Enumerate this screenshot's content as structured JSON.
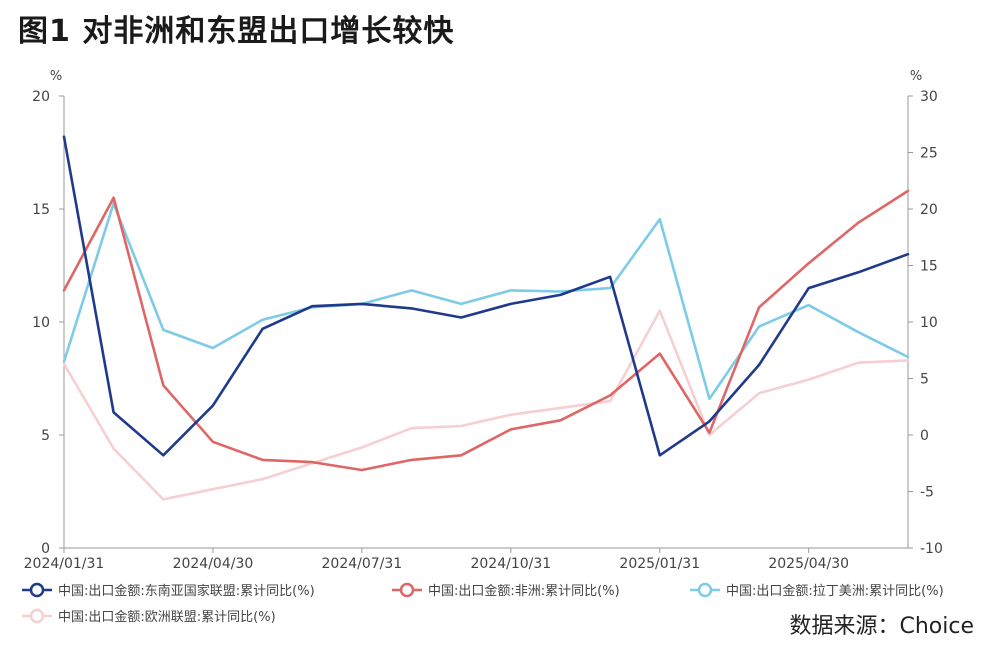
{
  "page": {
    "title": "图1    对非洲和东盟出口增长较快",
    "source": "数据来源：Choice"
  },
  "chart_data": {
    "type": "line",
    "left_unit": "%",
    "right_unit": "%",
    "x": [
      "2024-01-31",
      "2024-02-29",
      "2024-03-31",
      "2024-04-30",
      "2024-05-31",
      "2024-06-30",
      "2024-07-31",
      "2024-08-31",
      "2024-09-30",
      "2024-10-31",
      "2024-11-30",
      "2024-12-31",
      "2025-01-31",
      "2025-02-28",
      "2025-03-31",
      "2025-04-30",
      "2025-05-31",
      "2025-06-30"
    ],
    "x_tick_labels": [
      "2024/01/31",
      "2024/04/30",
      "2024/07/31",
      "2024/10/31",
      "2025/01/31",
      "2025/04/30"
    ],
    "x_tick_indices": [
      0,
      3,
      6,
      9,
      12,
      15
    ],
    "y_left": {
      "min": 0,
      "max": 20,
      "ticks": [
        0,
        5,
        10,
        15,
        20
      ]
    },
    "y_right": {
      "min": -10,
      "max": 30,
      "ticks": [
        -10,
        -5,
        0,
        5,
        10,
        15,
        20,
        25,
        30
      ]
    },
    "series": [
      {
        "name": "中国:出口金额:东南亚国家联盟:累计同比(%)",
        "axis": "left",
        "color": "#1f3a8a",
        "values": [
          18.2,
          6.0,
          4.1,
          6.3,
          9.7,
          10.7,
          10.8,
          10.6,
          10.2,
          10.8,
          11.2,
          12.0,
          4.1,
          5.6,
          8.1,
          11.5,
          12.2,
          13.0
        ]
      },
      {
        "name": "中国:出口金额:非洲:累计同比(%)",
        "axis": "right",
        "color": "#e06666",
        "values": [
          12.8,
          21.0,
          4.4,
          -0.6,
          -2.2,
          -2.4,
          -3.1,
          -2.2,
          -1.8,
          0.5,
          1.3,
          3.5,
          7.2,
          0.2,
          11.3,
          15.2,
          18.8,
          21.6
        ]
      },
      {
        "name": "中国:出口金额:拉丁美洲:累计同比(%)",
        "axis": "right",
        "color": "#7ecbe8",
        "values": [
          6.5,
          20.5,
          9.3,
          7.7,
          10.2,
          11.3,
          11.6,
          12.8,
          11.6,
          12.8,
          12.7,
          13.0,
          19.1,
          3.2,
          9.6,
          11.5,
          9.1,
          6.9
        ]
      },
      {
        "name": "中国:出口金额:欧洲联盟:累计同比(%)",
        "axis": "right",
        "color": "#f5cfd2",
        "values": [
          6.3,
          -1.2,
          -5.7,
          -4.8,
          -3.9,
          -2.5,
          -1.1,
          0.6,
          0.8,
          1.8,
          2.4,
          3.0,
          11.0,
          0.0,
          3.7,
          4.9,
          6.4,
          6.6
        ]
      }
    ]
  }
}
